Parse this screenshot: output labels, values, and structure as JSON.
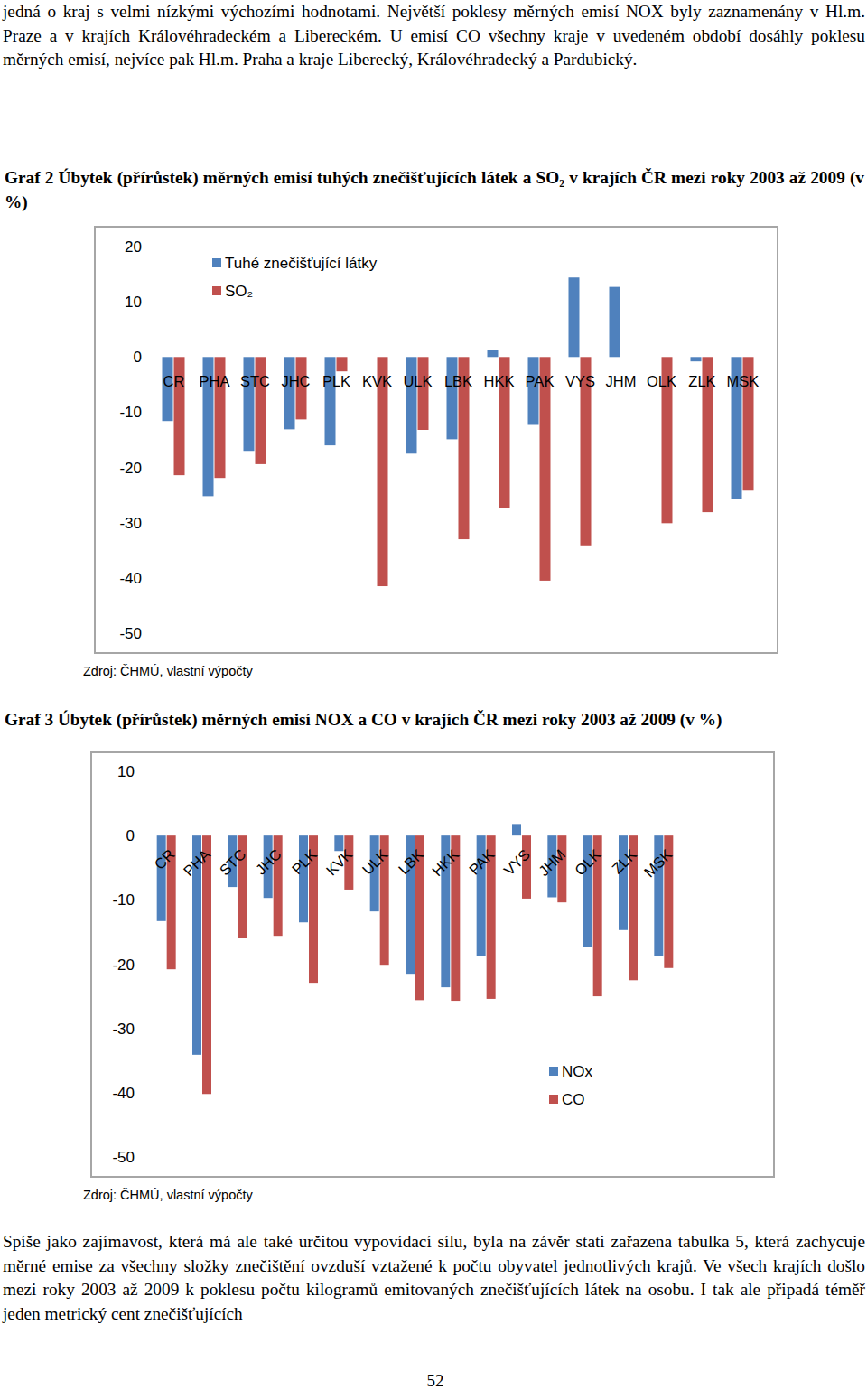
{
  "document": {
    "top_text": "jedná o kraj s velmi nízkými výchozími hodnotami. Největší poklesy měrných emisí NOX byly zaznamenány v Hl.m. Praze a v krajích Královéhradeckém a Libereckém. U emisí CO všechny kraje v uvedeném období dosáhly poklesu měrných emisí, nejvíce pak Hl.m. Praha a kraje Liberecký, Královéhradecký a Pardubický.",
    "bottom_text": "Spíše jako zajímavost, která má ale také určitou vypovídací sílu, byla na závěr stati zařazena tabulka 5, která zachycuje měrné emise za všechny složky znečištění ovzduší vztažené k počtu obyvatel jednotlivých krajů. Ve všech krajích došlo mezi roky 2003 až 2009 k poklesu počtu kilogramů emitovaných znečišťujících látek na osobu. I tak ale připadá téměř jeden metrický cent znečišťujících",
    "page_number": "52"
  },
  "chart_data": [
    {
      "type": "bar",
      "title": "Graf 2 Úbytek (přírůstek) měrných emisí tuhých znečišťujících látek a SO₂ v krajích ČR mezi roky 2003 až 2009 (v %)",
      "annotations": [
        "Zdroj: ČHMÚ, vlastní výpočty"
      ],
      "categories": [
        "CR",
        "PHA",
        "STC",
        "JHC",
        "PLK",
        "KVK",
        "ULK",
        "LBK",
        "HKK",
        "PAK",
        "VYS",
        "JHM",
        "OLK",
        "ZLK",
        "MSK"
      ],
      "series": [
        {
          "name": "Tuhé znečišťující látky",
          "color": "#4f81bd",
          "values": [
            -11.6,
            -25.2,
            -17.0,
            -13.1,
            -16.0,
            0,
            -17.5,
            -14.9,
            1.2,
            -12.3,
            14.4,
            12.7,
            0,
            -0.8,
            -25.7
          ]
        },
        {
          "name": "SO₂",
          "color": "#c0504d",
          "values": [
            -21.4,
            -21.9,
            -19.4,
            -11.3,
            -2.6,
            -41.5,
            -13.2,
            -33.0,
            -27.3,
            -40.5,
            -34.1,
            0,
            -30.1,
            -28.1,
            -24.2
          ]
        }
      ],
      "ylim": [
        -50,
        20
      ],
      "yticks": [
        -50,
        -40,
        -30,
        -20,
        -10,
        0,
        10,
        20
      ],
      "grid": false,
      "legend": "top-left"
    },
    {
      "type": "bar",
      "title": "Graf 3 Úbytek (přírůstek) měrných emisí NOX a CO v krajích ČR mezi roky 2003 až 2009 (v %)",
      "annotations": [
        "Zdroj: ČHMÚ, vlastní výpočty"
      ],
      "categories": [
        "CR",
        "PHA",
        "STC",
        "JHC",
        "PLK",
        "KVK",
        "ULK",
        "LBK",
        "HKK",
        "PAK",
        "VYS",
        "JHM",
        "OLK",
        "ZLK",
        "MSK"
      ],
      "series": [
        {
          "name": "NOx",
          "color": "#4f81bd",
          "values": [
            -13.3,
            -34.1,
            -8.0,
            -9.7,
            -13.5,
            -2.4,
            -11.8,
            -21.5,
            -23.6,
            -18.8,
            1.8,
            -9.6,
            -17.4,
            -14.7,
            -18.7
          ]
        },
        {
          "name": "CO",
          "color": "#c0504d",
          "values": [
            -20.8,
            -40.2,
            -15.9,
            -15.6,
            -22.9,
            -8.4,
            -20.1,
            -25.6,
            -25.7,
            -25.4,
            -9.8,
            -10.4,
            -25.0,
            -22.5,
            -20.6
          ]
        }
      ],
      "ylim": [
        -50,
        10
      ],
      "yticks": [
        -50,
        -40,
        -30,
        -20,
        -10,
        0,
        10
      ],
      "grid": false,
      "legend": "bottom-right"
    }
  ]
}
